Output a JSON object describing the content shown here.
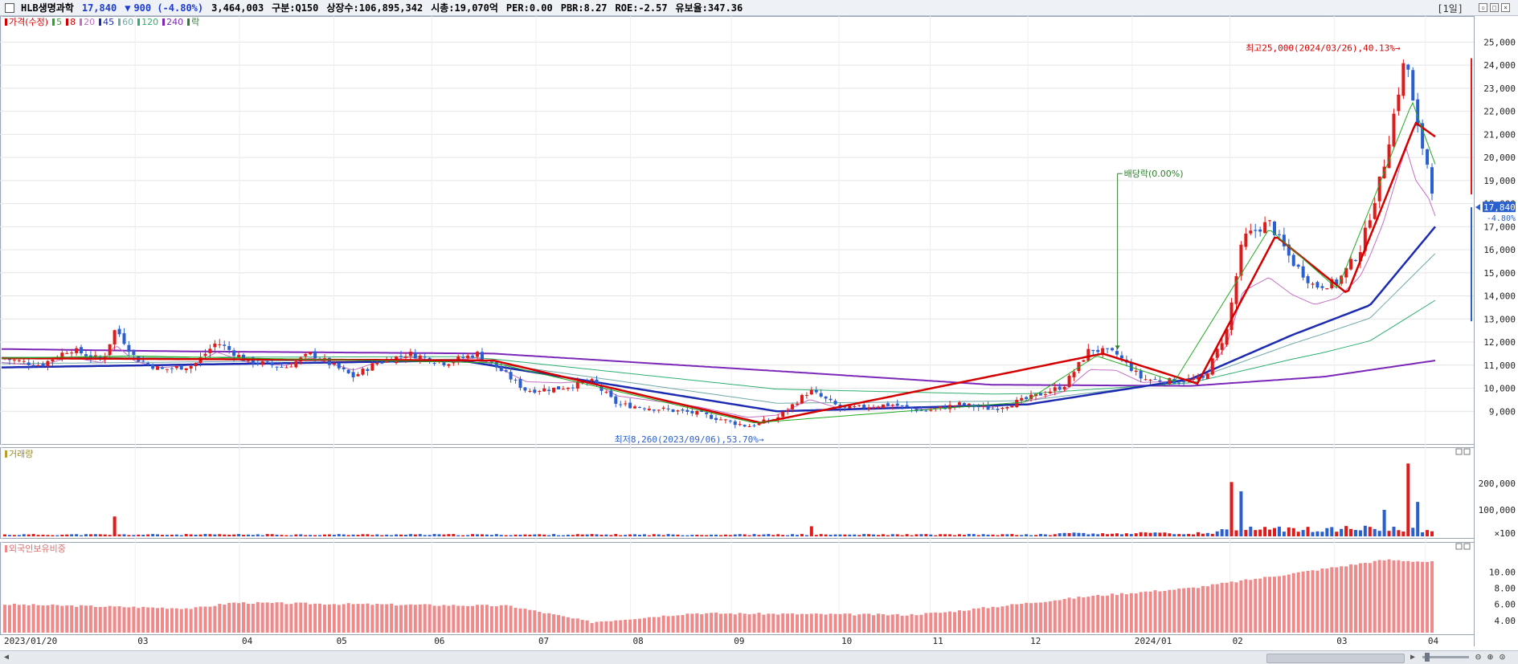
{
  "header": {
    "name": "HLB생명과학",
    "price": "17,840",
    "arrow": "▼",
    "change": "900 (-4.80%)",
    "volume": "3,464,003",
    "market": "구분:Q150",
    "shares": "상장수:106,895,342",
    "mcap": "시총:19,070억",
    "per": "PER:0.00",
    "pbr": "PBR:8.27",
    "roe": "ROE:-2.57",
    "float": "유보율:347.36",
    "interval": "[1일]"
  },
  "legend": [
    {
      "label": "가격(수정)",
      "color": "#d40000"
    },
    {
      "label": "5",
      "color": "#22aa22"
    },
    {
      "label": "8",
      "color": "#d40000"
    },
    {
      "label": "20",
      "color": "#c46fc4"
    },
    {
      "label": "45",
      "color": "#1c2bb0"
    },
    {
      "label": "60",
      "color": "#6fa8a8"
    },
    {
      "label": "120",
      "color": "#2eae6e"
    },
    {
      "label": "240",
      "color": "#7b28b8"
    },
    {
      "label": "락",
      "color": "#2e7d2e"
    }
  ],
  "panels": {
    "volume_label": "거래량",
    "foreign_label": "외국인보유비중"
  },
  "colors": {
    "up": "#e01a1a",
    "down": "#2a5fd0",
    "grid": "#e4e4e4",
    "foreign_bar": "#f08a8a"
  },
  "chart_data": {
    "type": "candlestick",
    "ylim": [
      8000,
      25500
    ],
    "yticks": [
      "9,000",
      "10,000",
      "11,000",
      "12,000",
      "13,000",
      "14,000",
      "15,000",
      "16,000",
      "17,000",
      "18,000",
      "19,000",
      "20,000",
      "21,000",
      "22,000",
      "23,000",
      "24,000",
      "25,000"
    ],
    "xticks": [
      "2023/01/20",
      "03",
      "04",
      "05",
      "06",
      "07",
      "08",
      "09",
      "10",
      "11",
      "12",
      "2024/01",
      "02",
      "03",
      "04"
    ],
    "current_price_label": "17,840",
    "current_change_label": "-4.80%",
    "annotations": {
      "high": "최고25,000(2024/03/26),40.13%→",
      "low": "최저8,260(2023/09/06),53.70%→",
      "dividend": "배당락(0.00%)"
    },
    "price_series": [
      {
        "date": "2023-01-20",
        "close": 11300
      },
      {
        "date": "2023-02-01",
        "close": 11000
      },
      {
        "date": "2023-02-10",
        "close": 11700
      },
      {
        "date": "2023-02-20",
        "close": 11200
      },
      {
        "date": "2023-02-24",
        "close": 12600
      },
      {
        "date": "2023-03-02",
        "close": 11300
      },
      {
        "date": "2023-03-10",
        "close": 10800
      },
      {
        "date": "2023-03-20",
        "close": 11000
      },
      {
        "date": "2023-03-27",
        "close": 12000
      },
      {
        "date": "2023-04-05",
        "close": 11200
      },
      {
        "date": "2023-04-17",
        "close": 10900
      },
      {
        "date": "2023-04-25",
        "close": 11500
      },
      {
        "date": "2023-05-08",
        "close": 10500
      },
      {
        "date": "2023-05-15",
        "close": 11100
      },
      {
        "date": "2023-05-25",
        "close": 11500
      },
      {
        "date": "2023-06-05",
        "close": 11100
      },
      {
        "date": "2023-06-15",
        "close": 11500
      },
      {
        "date": "2023-06-22",
        "close": 10800
      },
      {
        "date": "2023-06-30",
        "close": 9900
      },
      {
        "date": "2023-07-10",
        "close": 10000
      },
      {
        "date": "2023-07-20",
        "close": 10300
      },
      {
        "date": "2023-07-28",
        "close": 9300
      },
      {
        "date": "2023-08-10",
        "close": 9100
      },
      {
        "date": "2023-08-22",
        "close": 8900
      },
      {
        "date": "2023-09-06",
        "close": 8350
      },
      {
        "date": "2023-09-15",
        "close": 8700
      },
      {
        "date": "2023-09-25",
        "close": 9900
      },
      {
        "date": "2023-10-05",
        "close": 9100
      },
      {
        "date": "2023-10-20",
        "close": 9300
      },
      {
        "date": "2023-10-30",
        "close": 9000
      },
      {
        "date": "2023-11-10",
        "close": 9300
      },
      {
        "date": "2023-11-20",
        "close": 9100
      },
      {
        "date": "2023-11-30",
        "close": 9500
      },
      {
        "date": "2023-12-12",
        "close": 10100
      },
      {
        "date": "2023-12-20",
        "close": 11700
      },
      {
        "date": "2023-12-28",
        "close": 11500
      },
      {
        "date": "2024-01-05",
        "close": 10400
      },
      {
        "date": "2024-01-15",
        "close": 10300
      },
      {
        "date": "2024-01-24",
        "close": 10400
      },
      {
        "date": "2024-01-31",
        "close": 12500
      },
      {
        "date": "2024-02-05",
        "close": 16500
      },
      {
        "date": "2024-02-13",
        "close": 17200
      },
      {
        "date": "2024-02-20",
        "close": 15500
      },
      {
        "date": "2024-02-27",
        "close": 14400
      },
      {
        "date": "2024-03-05",
        "close": 14600
      },
      {
        "date": "2024-03-12",
        "close": 16000
      },
      {
        "date": "2024-03-19",
        "close": 19500
      },
      {
        "date": "2024-03-26",
        "close": 24500
      },
      {
        "date": "2024-03-29",
        "close": 21500
      },
      {
        "date": "2024-04-02",
        "close": 19500
      },
      {
        "date": "2024-04-04",
        "close": 17840
      }
    ],
    "ma5_series": [
      {
        "date": "2023-01-20",
        "value": 11300
      },
      {
        "date": "2023-03-01",
        "value": 11400
      },
      {
        "date": "2023-06-20",
        "value": 11100
      },
      {
        "date": "2023-09-08",
        "value": 8500
      },
      {
        "date": "2023-11-30",
        "value": 9400
      },
      {
        "date": "2023-12-22",
        "value": 11400
      },
      {
        "date": "2024-01-15",
        "value": 10300
      },
      {
        "date": "2024-02-13",
        "value": 16900
      },
      {
        "date": "2024-03-05",
        "value": 14300
      },
      {
        "date": "2024-03-28",
        "value": 22400
      },
      {
        "date": "2024-04-04",
        "value": 19700
      }
    ],
    "ma8_series": [
      {
        "date": "2023-01-20",
        "value": 11300
      },
      {
        "date": "2023-06-20",
        "value": 11200
      },
      {
        "date": "2023-09-10",
        "value": 8500
      },
      {
        "date": "2023-12-24",
        "value": 11500
      },
      {
        "date": "2024-01-22",
        "value": 10200
      },
      {
        "date": "2024-02-15",
        "value": 16600
      },
      {
        "date": "2024-03-08",
        "value": 14100
      },
      {
        "date": "2024-03-29",
        "value": 21500
      },
      {
        "date": "2024-04-04",
        "value": 20900
      }
    ],
    "ma45_series": [
      {
        "date": "2023-01-20",
        "value": 10900
      },
      {
        "date": "2023-06-10",
        "value": 11200
      },
      {
        "date": "2023-09-15",
        "value": 9000
      },
      {
        "date": "2023-12-01",
        "value": 9300
      },
      {
        "date": "2024-01-20",
        "value": 10400
      },
      {
        "date": "2024-02-20",
        "value": 12300
      },
      {
        "date": "2024-03-15",
        "value": 13600
      },
      {
        "date": "2024-04-04",
        "value": 17000
      }
    ],
    "ma240_series": [
      {
        "date": "2023-01-20",
        "value": 11700
      },
      {
        "date": "2023-03-15",
        "value": 11600
      },
      {
        "date": "2023-06-20",
        "value": 11500
      },
      {
        "date": "2023-09-20",
        "value": 10700
      },
      {
        "date": "2023-11-20",
        "value": 10150
      },
      {
        "date": "2024-01-20",
        "value": 10100
      },
      {
        "date": "2024-03-01",
        "value": 10500
      },
      {
        "date": "2024-04-04",
        "value": 11200
      }
    ],
    "volume_panel": {
      "yticks": [
        "200,000",
        "100,000",
        "×100"
      ],
      "peaks": [
        {
          "date": "2023-02-24",
          "value": 75000
        },
        {
          "date": "2023-09-25",
          "value": 38000
        },
        {
          "date": "2024-02-01",
          "value": 205000
        },
        {
          "date": "2024-02-05",
          "value": 170000
        },
        {
          "date": "2024-03-26",
          "value": 275000
        },
        {
          "date": "2024-03-20",
          "value": 100000
        },
        {
          "date": "2024-03-29",
          "value": 130000
        }
      ]
    },
    "foreign_panel": {
      "yticks": [
        "10.00",
        "8.00",
        "6.00",
        "4.00"
      ],
      "points": [
        {
          "date": "2023-01-20",
          "value": 6.0
        },
        {
          "date": "2023-03-20",
          "value": 5.5
        },
        {
          "date": "2023-04-01",
          "value": 6.2
        },
        {
          "date": "2023-06-25",
          "value": 5.8
        },
        {
          "date": "2023-07-20",
          "value": 3.8
        },
        {
          "date": "2023-08-20",
          "value": 4.9
        },
        {
          "date": "2023-10-25",
          "value": 4.7
        },
        {
          "date": "2023-11-05",
          "value": 5.0
        },
        {
          "date": "2023-12-20",
          "value": 7.0
        },
        {
          "date": "2024-01-20",
          "value": 8.0
        },
        {
          "date": "2024-02-15",
          "value": 9.5
        },
        {
          "date": "2024-03-20",
          "value": 11.5
        },
        {
          "date": "2024-04-04",
          "value": 11.2
        }
      ]
    }
  }
}
